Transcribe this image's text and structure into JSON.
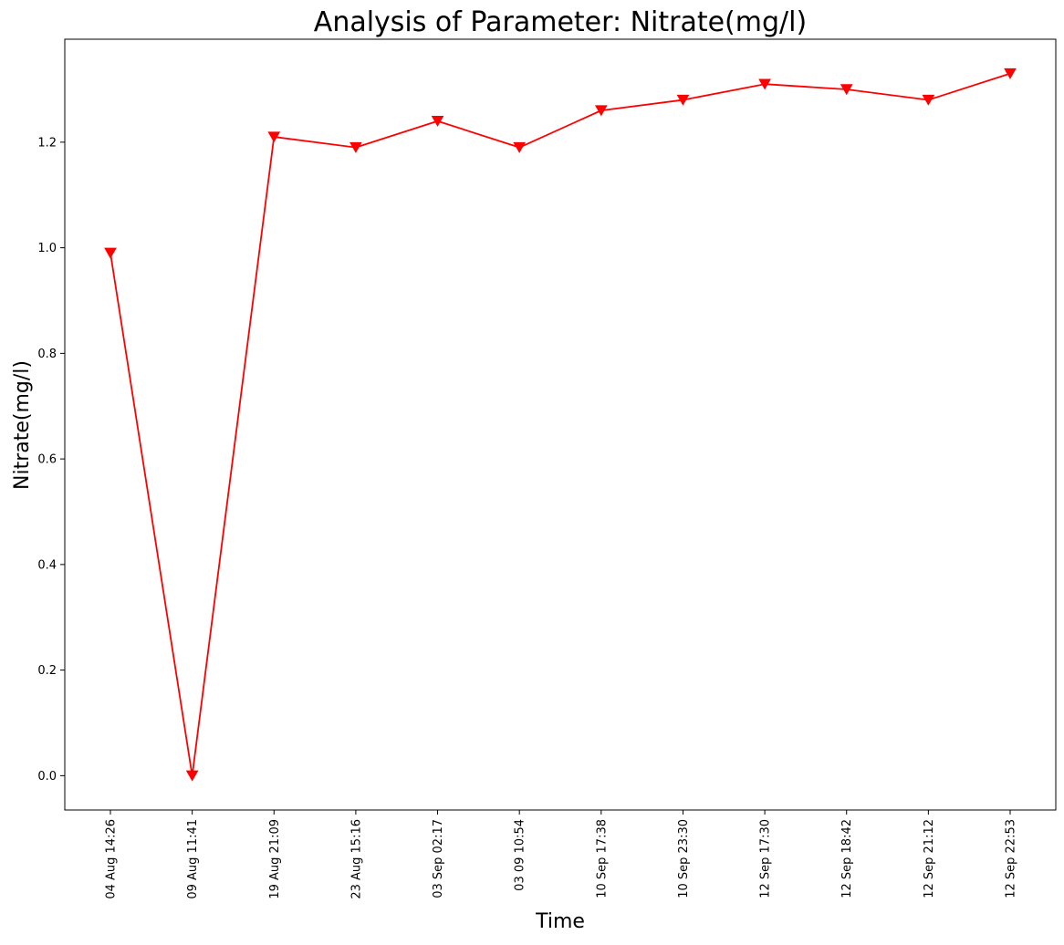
{
  "chart_data": {
    "type": "line",
    "title": "Analysis of Parameter: Nitrate(mg/l)",
    "xlabel": "Time",
    "ylabel": "Nitrate(mg/l)",
    "categories": [
      "04 Aug 14:26",
      "09 Aug 11:41",
      "19 Aug 21:09",
      "23 Aug 15:16",
      "03 Sep 02:17",
      "03 09 10:54",
      "10 Sep 17:38",
      "10 Sep 23:30",
      "12 Sep 17:30",
      "12 Sep 18:42",
      "12 Sep 21:12",
      "12 Sep 22:53"
    ],
    "series": [
      {
        "values": [
          0.99,
          0.0,
          1.21,
          1.19,
          1.24,
          1.19,
          1.26,
          1.28,
          1.31,
          1.3,
          1.28,
          1.33
        ],
        "color": "#ff0000",
        "marker": "triangle-down"
      }
    ],
    "ylim": [
      -0.065,
      1.395
    ],
    "yticks": [
      0.0,
      0.2,
      0.4,
      0.6,
      0.8,
      1.0,
      1.2
    ],
    "grid": false,
    "legend": "none"
  }
}
